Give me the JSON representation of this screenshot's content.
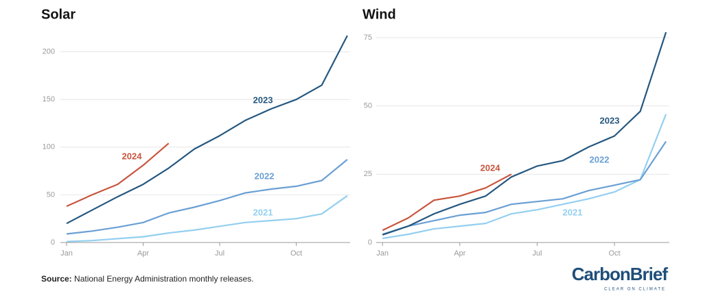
{
  "charts": [
    {
      "type": "line",
      "title": "Solar",
      "x": [
        1,
        2,
        3,
        4,
        5,
        6,
        7,
        8,
        9,
        10,
        11,
        12
      ],
      "xlim": [
        0.14,
        12.11
      ],
      "xticks": [
        {
          "value": 1,
          "label": "Jan"
        },
        {
          "value": 4,
          "label": "Apr"
        },
        {
          "value": 7,
          "label": "Jul"
        },
        {
          "value": 10,
          "label": "Oct"
        }
      ],
      "ylim": [
        0,
        222
      ],
      "yticks": [
        0,
        50,
        100,
        150,
        200
      ],
      "grid": true,
      "series": [
        {
          "name": "2021",
          "color": "#93cff0",
          "values": [
            1,
            2,
            4,
            6,
            10,
            13,
            17,
            21,
            23,
            25,
            30,
            49
          ]
        },
        {
          "name": "2022",
          "color": "#6a9fd4",
          "values": [
            9,
            12,
            16,
            21,
            31,
            37,
            44,
            52,
            56,
            59,
            65,
            87
          ]
        },
        {
          "name": "2023",
          "color": "#25577f",
          "values": [
            20,
            34,
            48,
            61,
            78,
            98,
            112,
            128,
            140,
            150,
            165,
            217
          ]
        },
        {
          "name": "2024",
          "color": "#c8553d",
          "values": [
            38,
            50,
            61,
            81,
            104,
            null,
            null,
            null,
            null,
            null,
            null,
            null
          ]
        }
      ]
    },
    {
      "type": "line",
      "title": "Wind",
      "x": [
        1,
        2,
        3,
        4,
        5,
        6,
        7,
        8,
        9,
        10,
        11,
        12
      ],
      "xlim": [
        0.41,
        12.13
      ],
      "xticks": [
        {
          "value": 1,
          "label": "Jan"
        },
        {
          "value": 4,
          "label": "Apr"
        },
        {
          "value": 7,
          "label": "Jul"
        },
        {
          "value": 10,
          "label": "Oct"
        }
      ],
      "ylim": [
        0,
        77.5
      ],
      "yticks": [
        0,
        25,
        50,
        75
      ],
      "grid": true,
      "series": [
        {
          "name": "2021",
          "color": "#93cff0",
          "values": [
            1.5,
            3,
            5,
            6,
            7,
            10.5,
            12,
            14,
            16,
            18.5,
            23,
            47
          ]
        },
        {
          "name": "2022",
          "color": "#6a9fd4",
          "values": [
            3,
            6,
            8,
            10,
            11,
            14,
            15,
            16,
            19,
            21,
            23,
            37
          ]
        },
        {
          "name": "2023",
          "color": "#25577f",
          "values": [
            2.8,
            6,
            10.5,
            14,
            17,
            24,
            28,
            30,
            35,
            39,
            48,
            77
          ]
        },
        {
          "name": "2024",
          "color": "#c8553d",
          "values": [
            4.5,
            9,
            15.5,
            17,
            20,
            25,
            null,
            null,
            null,
            null,
            null,
            null
          ]
        }
      ]
    }
  ],
  "source_label": "Source:",
  "source_text": "National Energy Administration monthly releases.",
  "logo": "CarbonBrief",
  "logo_tagline": "CLEAR ON CLIMATE"
}
